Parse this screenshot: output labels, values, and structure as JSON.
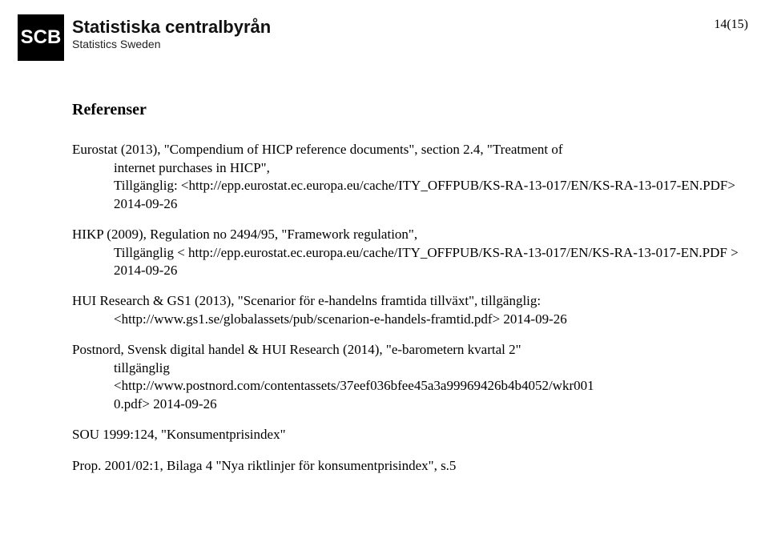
{
  "header": {
    "logo_abbrev": "SCB",
    "org_main": "Statistiska centralbyrån",
    "org_sub": "Statistics Sweden",
    "page_number": "14(15)"
  },
  "content": {
    "section_title": "Referenser",
    "refs": [
      {
        "line1": "Eurostat (2013), \"Compendium of HICP reference documents\", section 2.4, \"Treatment of",
        "indent": "internet purchases in HICP\",\nTillgänglig: <http://epp.eurostat.ec.europa.eu/cache/ITY_OFFPUB/KS-RA-13-017/EN/KS-RA-13-017-EN.PDF> 2014-09-26"
      },
      {
        "line1": "HIKP (2009), Regulation no 2494/95, \"Framework regulation\",",
        "indent": "Tillgänglig < http://epp.eurostat.ec.europa.eu/cache/ITY_OFFPUB/KS-RA-13-017/EN/KS-RA-13-017-EN.PDF > 2014-09-26"
      },
      {
        "line1": "HUI Research & GS1 (2013), \"Scenarior för e-handelns framtida tillväxt\", tillgänglig:",
        "indent": "<http://www.gs1.se/globalassets/pub/scenarion-e-handels-framtid.pdf> 2014-09-26"
      },
      {
        "line1": "Postnord, Svensk digital handel & HUI Research (2014), \"e-barometern kvartal 2\"",
        "indent": "tillgänglig\n<http://www.postnord.com/contentassets/37eef036bfee45a3a99969426b4b4052/wkr001\n0.pdf> 2014-09-26"
      },
      {
        "line1": "SOU 1999:124, \"Konsumentprisindex\""
      },
      {
        "line1": "Prop. 2001/02:1, Bilaga 4 \"Nya riktlinjer för konsumentprisindex\", s.5"
      }
    ]
  },
  "style": {
    "body_font": "Times New Roman",
    "header_font": "Arial",
    "body_fontsize_pt": 13,
    "title_fontsize_pt": 15,
    "text_color": "#000000",
    "background_color": "#ffffff",
    "logo_bg": "#000000",
    "logo_fg": "#ffffff"
  }
}
